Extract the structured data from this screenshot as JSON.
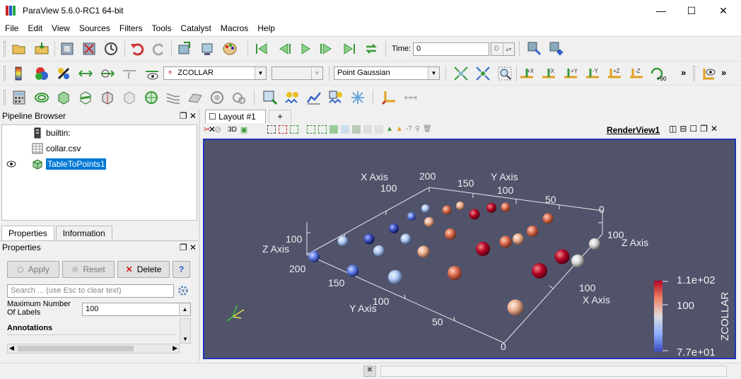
{
  "window": {
    "title": "ParaView 5.6.0-RC1 64-bit",
    "minimize": "—",
    "maximize": "☐",
    "close": "✕"
  },
  "menu": [
    "File",
    "Edit",
    "View",
    "Sources",
    "Filters",
    "Tools",
    "Catalyst",
    "Macros",
    "Help"
  ],
  "time": {
    "label": "Time:",
    "value": "0",
    "step": "0"
  },
  "toolbar2": {
    "array": "ZCOLLAR",
    "component": "",
    "representation": "Point Gaussian",
    "rotate_label": "+90",
    "more": "»"
  },
  "pipeline": {
    "title": "Pipeline Browser",
    "items": [
      "builtin:",
      "collar.csv",
      "TableToPoints1"
    ]
  },
  "properties": {
    "tab_properties": "Properties",
    "tab_information": "Information",
    "title": "Properties",
    "apply": "Apply",
    "reset": "Reset",
    "delete": "Delete",
    "help": "?",
    "search_placeholder": "Search ... (use Esc to clear text)",
    "max_labels_label": "Maximum Number Of Labels",
    "max_labels_value": "100",
    "annotations": "Annotations"
  },
  "layout": {
    "tab": "Layout #1",
    "add": "+",
    "mode_3d": "3D",
    "view_name": "RenderView1"
  },
  "scene": {
    "axis_labels": {
      "x_top": "X Axis",
      "y_top": "Y Axis",
      "z_left": "Z Axis",
      "z_right": "Z Axis",
      "y_bottom": "Y Axis",
      "x_bottom": "X Axis"
    },
    "ticks": {
      "top_200": "200",
      "top_150": "150",
      "top_100a": "100",
      "top_100b": "100",
      "top_50": "50",
      "top_0": "0",
      "left_100": "100",
      "left_200": "200",
      "right_100": "100",
      "bot_150": "150",
      "bot_100": "100",
      "bot_50": "50",
      "bot_0": "0",
      "bot_x100": "100"
    },
    "colorbar": {
      "title": "ZCOLLAR",
      "max": "1.1e+02",
      "mid": "100",
      "min": "7.7e+01"
    }
  },
  "colors": {
    "render_bg": "#51536b",
    "view_border": "#1f33b8",
    "selection": "#0078d7",
    "cold": "#3a4cc0",
    "neutral": "#dddddd",
    "hot": "#b40426"
  }
}
